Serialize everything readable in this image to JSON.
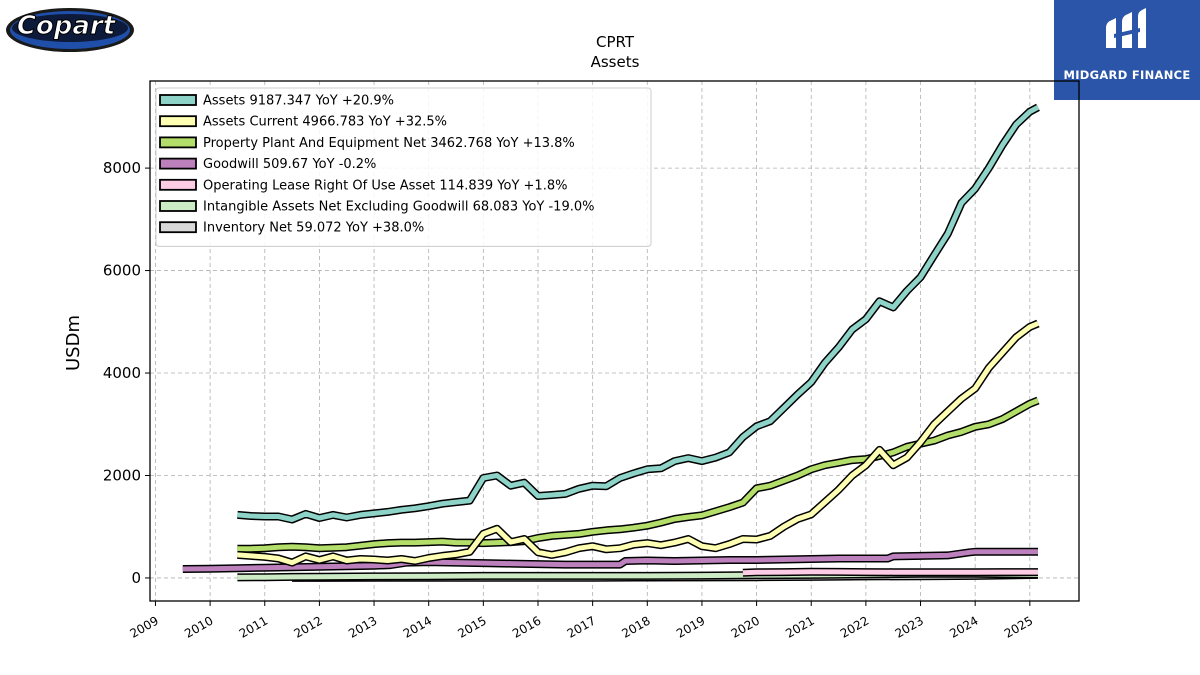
{
  "brand": {
    "left_logo_text": "Copart",
    "right_logo_text": "MIDGARD FINANCE",
    "right_bg_color": "#2a55a8"
  },
  "chart_data": {
    "type": "line",
    "title": "CPRT",
    "subtitle": "Assets",
    "ylabel": "USDm",
    "xlabel": "",
    "xlim": [
      2008.9,
      2025.9
    ],
    "ylim": [
      -450,
      9700
    ],
    "yticks": [
      0,
      2000,
      4000,
      6000,
      8000
    ],
    "xticks": [
      2009,
      2010,
      2011,
      2012,
      2013,
      2014,
      2015,
      2016,
      2017,
      2018,
      2019,
      2020,
      2021,
      2022,
      2023,
      2024,
      2025
    ],
    "grid": true,
    "legend_position": "top-left",
    "series": [
      {
        "name": "Assets",
        "legend": "Assets  9187.347 YoY +20.9%",
        "color": "#8dd3c7",
        "x": [
          2010.5,
          2010.75,
          2011.0,
          2011.25,
          2011.5,
          2011.75,
          2012.0,
          2012.25,
          2012.5,
          2012.75,
          2013.0,
          2013.25,
          2013.5,
          2013.75,
          2014.0,
          2014.25,
          2014.5,
          2014.75,
          2015.0,
          2015.25,
          2015.5,
          2015.75,
          2016.0,
          2016.25,
          2016.5,
          2016.75,
          2017.0,
          2017.25,
          2017.5,
          2017.75,
          2018.0,
          2018.25,
          2018.5,
          2018.75,
          2019.0,
          2019.25,
          2019.5,
          2019.75,
          2020.0,
          2020.25,
          2020.5,
          2020.75,
          2021.0,
          2021.25,
          2021.5,
          2021.75,
          2022.0,
          2022.25,
          2022.5,
          2022.75,
          2023.0,
          2023.25,
          2023.5,
          2023.75,
          2024.0,
          2024.25,
          2024.5,
          2024.75,
          2025.0,
          2025.15
        ],
        "y": [
          1230,
          1210,
          1200,
          1200,
          1140,
          1250,
          1170,
          1230,
          1180,
          1230,
          1260,
          1290,
          1330,
          1360,
          1400,
          1450,
          1480,
          1510,
          1950,
          2000,
          1800,
          1860,
          1600,
          1620,
          1640,
          1740,
          1800,
          1790,
          1950,
          2040,
          2120,
          2140,
          2280,
          2340,
          2280,
          2350,
          2450,
          2750,
          2960,
          3060,
          3320,
          3580,
          3820,
          4200,
          4500,
          4850,
          5050,
          5400,
          5280,
          5600,
          5870,
          6300,
          6720,
          7320,
          7600,
          8000,
          8450,
          8850,
          9100,
          9187
        ]
      },
      {
        "name": "Assets Current",
        "legend": "Assets Current  4966.783 YoY +32.5%",
        "color": "#ffffb3",
        "x": [
          2010.5,
          2010.75,
          2011.0,
          2011.25,
          2011.5,
          2011.75,
          2012.0,
          2012.25,
          2012.5,
          2012.75,
          2013.0,
          2013.25,
          2013.5,
          2013.75,
          2014.0,
          2014.25,
          2014.5,
          2014.75,
          2015.0,
          2015.25,
          2015.5,
          2015.75,
          2016.0,
          2016.25,
          2016.5,
          2016.75,
          2017.0,
          2017.25,
          2017.5,
          2017.75,
          2018.0,
          2018.25,
          2018.5,
          2018.75,
          2019.0,
          2019.25,
          2019.5,
          2019.75,
          2020.0,
          2020.25,
          2020.5,
          2020.75,
          2021.0,
          2021.25,
          2021.5,
          2021.75,
          2022.0,
          2022.25,
          2022.5,
          2022.75,
          2023.0,
          2023.25,
          2023.5,
          2023.75,
          2024.0,
          2024.25,
          2024.5,
          2024.75,
          2025.0,
          2025.15
        ],
        "y": [
          450,
          430,
          410,
          380,
          300,
          420,
          350,
          420,
          340,
          370,
          360,
          340,
          370,
          330,
          390,
          430,
          460,
          510,
          860,
          960,
          700,
          760,
          500,
          450,
          500,
          580,
          620,
          560,
          580,
          650,
          680,
          640,
          690,
          760,
          620,
          580,
          660,
          760,
          750,
          820,
          1000,
          1150,
          1240,
          1480,
          1720,
          2000,
          2200,
          2500,
          2200,
          2350,
          2650,
          3000,
          3250,
          3500,
          3700,
          4100,
          4400,
          4700,
          4900,
          4967
        ]
      },
      {
        "name": "Property Plant And Equipment Net",
        "legend": "Property Plant And Equipment Net  3462.768 YoY +13.8%",
        "color": "#b3de69",
        "x": [
          2010.5,
          2010.75,
          2011.0,
          2011.25,
          2011.5,
          2011.75,
          2012.0,
          2012.25,
          2012.5,
          2012.75,
          2013.0,
          2013.25,
          2013.5,
          2013.75,
          2014.0,
          2014.25,
          2014.5,
          2014.75,
          2015.0,
          2015.25,
          2015.5,
          2015.75,
          2016.0,
          2016.25,
          2016.5,
          2016.75,
          2017.0,
          2017.25,
          2017.5,
          2017.75,
          2018.0,
          2018.25,
          2018.5,
          2018.75,
          2019.0,
          2019.25,
          2019.5,
          2019.75,
          2020.0,
          2020.25,
          2020.5,
          2020.75,
          2021.0,
          2021.25,
          2021.5,
          2021.75,
          2022.0,
          2022.25,
          2022.5,
          2022.75,
          2023.0,
          2023.25,
          2023.5,
          2023.75,
          2024.0,
          2024.25,
          2024.5,
          2024.75,
          2025.0,
          2025.15
        ],
        "y": [
          570,
          570,
          580,
          600,
          610,
          600,
          580,
          590,
          600,
          630,
          660,
          680,
          690,
          690,
          700,
          710,
          690,
          690,
          680,
          690,
          700,
          720,
          780,
          820,
          840,
          860,
          900,
          930,
          950,
          980,
          1020,
          1080,
          1150,
          1190,
          1220,
          1300,
          1380,
          1470,
          1750,
          1800,
          1900,
          2000,
          2120,
          2200,
          2250,
          2300,
          2320,
          2380,
          2450,
          2560,
          2620,
          2680,
          2780,
          2850,
          2950,
          3000,
          3100,
          3250,
          3400,
          3463
        ]
      },
      {
        "name": "Goodwill",
        "legend": "Goodwill  509.67 YoY -0.2%",
        "color": "#bc80bd",
        "x": [
          2009.5,
          2010.0,
          2010.5,
          2011.0,
          2011.5,
          2012.0,
          2012.5,
          2013.0,
          2013.3,
          2013.6,
          2014.0,
          2014.5,
          2015.0,
          2015.5,
          2016.0,
          2016.5,
          2017.0,
          2017.5,
          2017.6,
          2018.0,
          2018.5,
          2019.0,
          2019.5,
          2020.0,
          2020.5,
          2021.0,
          2021.5,
          2022.0,
          2022.4,
          2022.5,
          2023.0,
          2023.5,
          2023.9,
          2024.0,
          2024.5,
          2025.0,
          2025.15
        ],
        "y": [
          175,
          180,
          190,
          200,
          210,
          220,
          230,
          240,
          250,
          300,
          310,
          300,
          290,
          280,
          270,
          260,
          260,
          260,
          330,
          340,
          330,
          340,
          350,
          350,
          360,
          370,
          380,
          380,
          380,
          420,
          430,
          440,
          500,
          510,
          510,
          510,
          510
        ]
      },
      {
        "name": "Operating Lease Right Of Use Asset",
        "legend": "Operating Lease Right Of Use Asset  114.839 YoY +1.8%",
        "color": "#fccde5",
        "x": [
          2019.75,
          2020.0,
          2020.5,
          2021.0,
          2021.5,
          2022.0,
          2022.5,
          2023.0,
          2023.5,
          2024.0,
          2024.5,
          2025.15
        ],
        "y": [
          100,
          110,
          115,
          120,
          118,
          115,
          112,
          110,
          112,
          113,
          114,
          115
        ]
      },
      {
        "name": "Intangible Assets Net Excluding Goodwill",
        "legend": "Intangible Assets Net Excluding Goodwill  68.083 YoY -19.0%",
        "color": "#ccebc5",
        "x": [
          2010.5,
          2011.0,
          2011.5,
          2012.0,
          2013.0,
          2014.0,
          2015.0,
          2016.0,
          2017.0,
          2018.0,
          2019.0,
          2020.0,
          2021.0,
          2022.0,
          2023.0,
          2024.0,
          2025.15
        ],
        "y": [
          10,
          15,
          20,
          25,
          30,
          35,
          40,
          40,
          40,
          40,
          45,
          55,
          60,
          70,
          80,
          80,
          68
        ]
      },
      {
        "name": "Inventory Net",
        "legend": "Inventory Net  59.072 YoY +38.0%",
        "color": "#d9d9d9",
        "x": [
          2011.5,
          2012.0,
          2013.0,
          2014.0,
          2015.0,
          2016.0,
          2017.0,
          2018.0,
          2019.0,
          2020.0,
          2021.0,
          2022.0,
          2023.0,
          2024.0,
          2025.15
        ],
        "y": [
          0,
          0,
          2,
          3,
          4,
          5,
          5,
          8,
          10,
          15,
          20,
          30,
          35,
          40,
          59
        ]
      }
    ]
  }
}
